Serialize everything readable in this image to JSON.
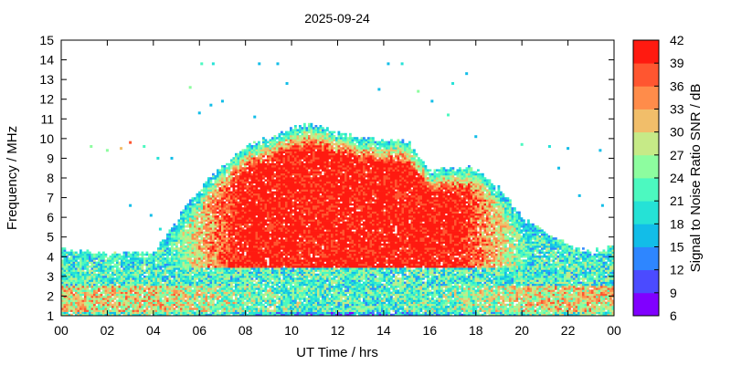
{
  "chart_data": {
    "type": "heatmap",
    "title": "2025-09-24",
    "xlabel": "UT Time / hrs",
    "ylabel": "Frequency / MHz",
    "colorbar_label": "Signal to Noise Ratio SNR / dB",
    "xlim": [
      0,
      24
    ],
    "ylim": [
      1,
      15
    ],
    "x_ticks": [
      "00",
      "02",
      "04",
      "06",
      "08",
      "10",
      "12",
      "14",
      "16",
      "18",
      "20",
      "22",
      "00"
    ],
    "y_ticks": [
      "1",
      "2",
      "3",
      "4",
      "5",
      "6",
      "7",
      "8",
      "9",
      "10",
      "11",
      "12",
      "13",
      "14",
      "15"
    ],
    "snr_range": [
      6,
      42
    ],
    "colorbar_ticks": [
      "6",
      "9",
      "12",
      "15",
      "18",
      "21",
      "24",
      "27",
      "30",
      "33",
      "36",
      "39",
      "42"
    ],
    "colorbar_colors": [
      "#8000ff",
      "#4b4bff",
      "#2e86ff",
      "#12bde8",
      "#25e2d6",
      "#4cf9c0",
      "#8dfd9f",
      "#c6ea87",
      "#f1be6a",
      "#ff8c4a",
      "#ff5630",
      "#ff1a10"
    ],
    "grid": false,
    "layer_upper_edge_mhz": {
      "hours": [
        0,
        2,
        4,
        4.5,
        5.5,
        6.5,
        8,
        9,
        10,
        11,
        12,
        13,
        14,
        15,
        16,
        17,
        18,
        19,
        20,
        21,
        22,
        23,
        24
      ],
      "mhz": [
        4.4,
        4.2,
        4.3,
        5.2,
        6.8,
        8.2,
        9.7,
        10.1,
        10.6,
        10.8,
        10.3,
        10.1,
        10.0,
        9.9,
        8.4,
        8.6,
        8.5,
        7.5,
        6.0,
        5.3,
        4.6,
        4.3,
        4.6
      ]
    },
    "scatter_echoes": [
      {
        "x": 1.3,
        "y": 9.6,
        "snr": 24
      },
      {
        "x": 2.0,
        "y": 9.4,
        "snr": 24
      },
      {
        "x": 2.6,
        "y": 9.5,
        "snr": 30
      },
      {
        "x": 3.0,
        "y": 9.8,
        "snr": 36
      },
      {
        "x": 3.6,
        "y": 9.6,
        "snr": 21
      },
      {
        "x": 4.2,
        "y": 9.0,
        "snr": 18
      },
      {
        "x": 4.8,
        "y": 9.0,
        "snr": 15
      },
      {
        "x": 5.6,
        "y": 12.6,
        "snr": 24
      },
      {
        "x": 6.1,
        "y": 13.8,
        "snr": 21
      },
      {
        "x": 6.6,
        "y": 13.8,
        "snr": 18
      },
      {
        "x": 6.5,
        "y": 11.7,
        "snr": 15
      },
      {
        "x": 7.0,
        "y": 11.9,
        "snr": 15
      },
      {
        "x": 8.6,
        "y": 13.8,
        "snr": 15
      },
      {
        "x": 9.4,
        "y": 13.8,
        "snr": 15
      },
      {
        "x": 9.8,
        "y": 12.8,
        "snr": 15
      },
      {
        "x": 13.8,
        "y": 12.5,
        "snr": 15
      },
      {
        "x": 14.2,
        "y": 13.8,
        "snr": 15
      },
      {
        "x": 14.8,
        "y": 13.8,
        "snr": 18
      },
      {
        "x": 15.5,
        "y": 12.4,
        "snr": 24
      },
      {
        "x": 16.1,
        "y": 11.9,
        "snr": 15
      },
      {
        "x": 17.0,
        "y": 12.8,
        "snr": 18
      },
      {
        "x": 17.6,
        "y": 13.3,
        "snr": 15
      },
      {
        "x": 16.8,
        "y": 11.2,
        "snr": 21
      },
      {
        "x": 18.0,
        "y": 10.1,
        "snr": 15
      },
      {
        "x": 20.0,
        "y": 9.7,
        "snr": 21
      },
      {
        "x": 21.2,
        "y": 9.6,
        "snr": 18
      },
      {
        "x": 22.0,
        "y": 9.5,
        "snr": 15
      },
      {
        "x": 23.4,
        "y": 9.4,
        "snr": 15
      },
      {
        "x": 21.6,
        "y": 8.5,
        "snr": 15
      },
      {
        "x": 22.5,
        "y": 7.1,
        "snr": 15
      },
      {
        "x": 23.5,
        "y": 6.6,
        "snr": 15
      },
      {
        "x": 3.0,
        "y": 6.6,
        "snr": 15
      },
      {
        "x": 3.9,
        "y": 6.1,
        "snr": 15
      },
      {
        "x": 4.3,
        "y": 5.4,
        "snr": 18
      },
      {
        "x": 6.0,
        "y": 11.3,
        "snr": 15
      },
      {
        "x": 8.4,
        "y": 11.1,
        "snr": 15
      }
    ]
  }
}
